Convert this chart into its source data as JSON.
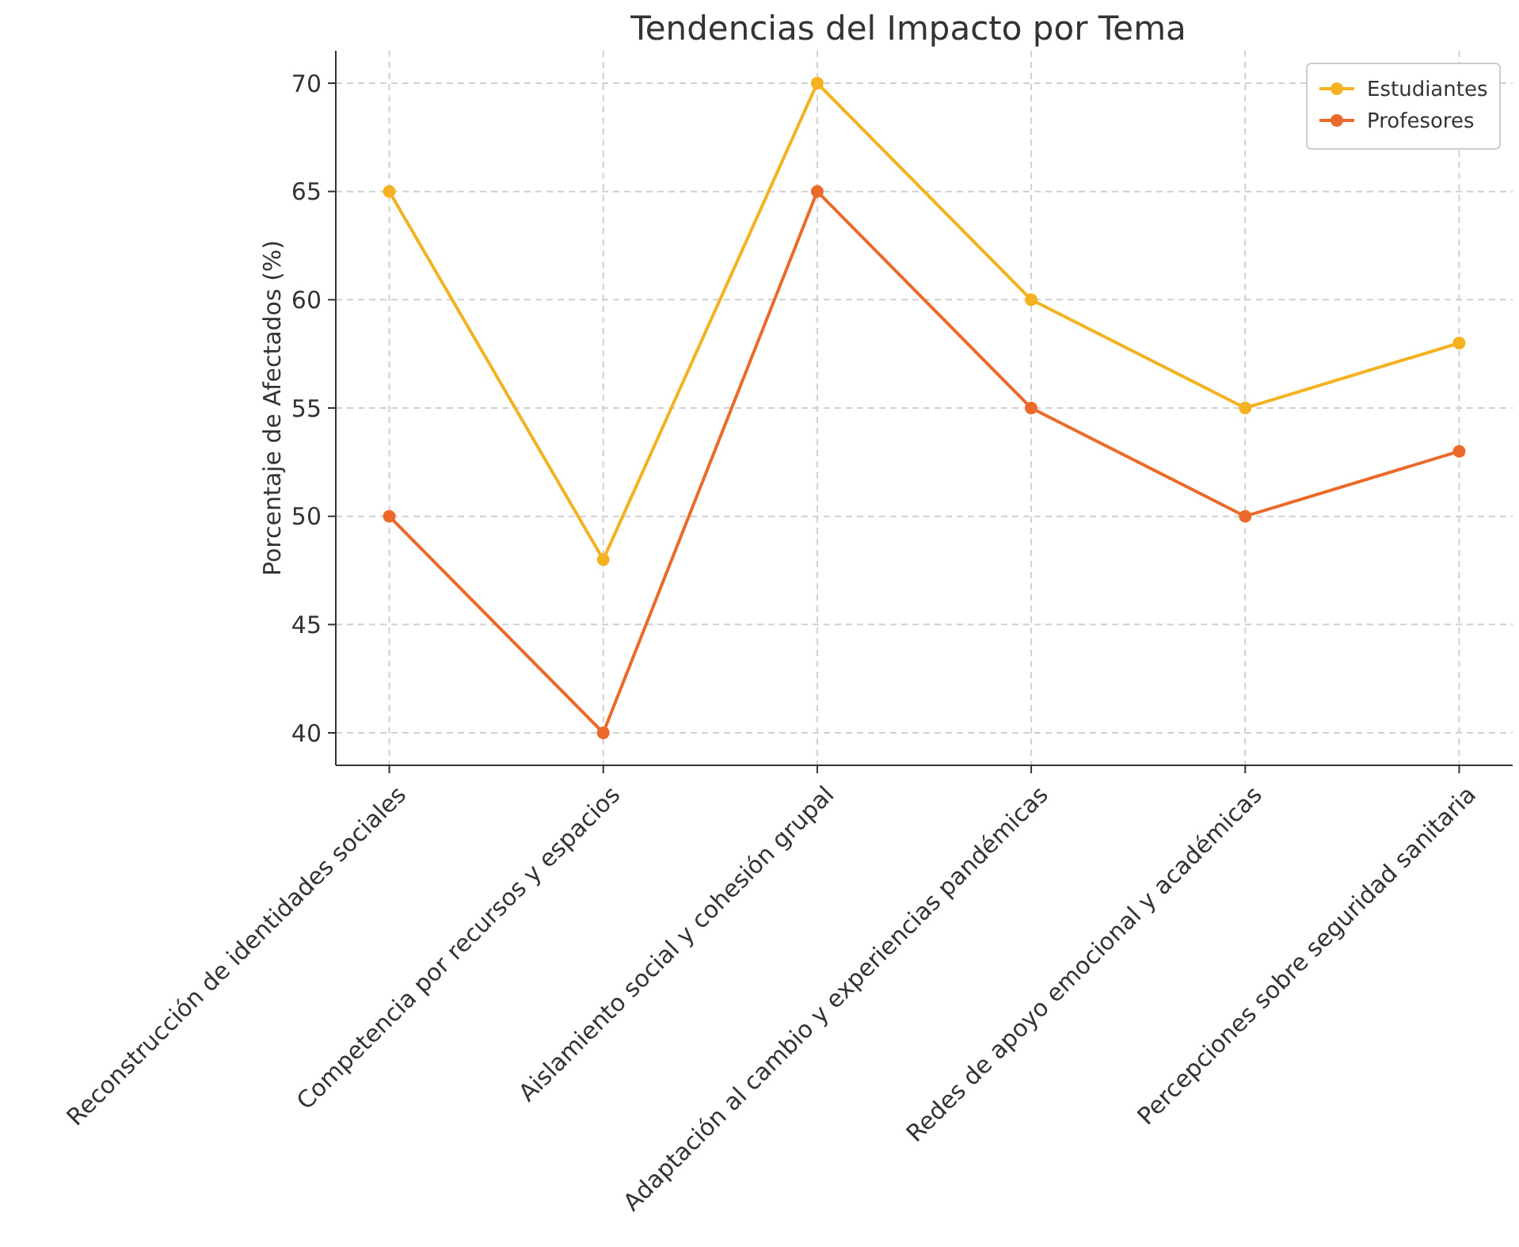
{
  "chart_data": {
    "type": "line",
    "title": "Tendencias del Impacto por Tema",
    "ylabel": "Porcentaje de Afectados (%)",
    "categories": [
      "Reconstrucción de identidades sociales",
      "Competencia por recursos y espacios",
      "Aislamiento social y cohesión grupal",
      "Adaptación al cambio y experiencias pandémicas",
      "Redes de apoyo emocional y académicas",
      "Percepciones sobre seguridad sanitaria"
    ],
    "series": [
      {
        "name": "Estudiantes",
        "color": "#f4b120",
        "values": [
          65,
          48,
          70,
          60,
          55,
          58
        ]
      },
      {
        "name": "Profesores",
        "color": "#eb6a2a",
        "values": [
          50,
          40,
          65,
          55,
          50,
          53
        ]
      }
    ],
    "ylim": [
      38.5,
      71.5
    ],
    "yticks": [
      40,
      45,
      50,
      55,
      60,
      65,
      70
    ],
    "grid": true,
    "legend": "top right",
    "marker": "circle",
    "line_style": "solid"
  }
}
